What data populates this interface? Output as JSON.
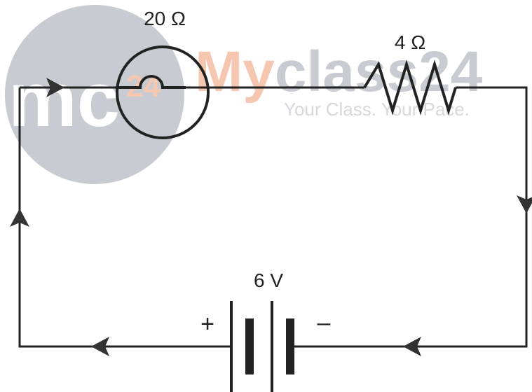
{
  "watermark": {
    "logo_text": "mc",
    "logo_badge": "24",
    "brand_my": "My",
    "brand_rest": "class24",
    "tagline": "Your Class. Your Pace.",
    "colors": {
      "circle": "#c9cbd2",
      "badge": "#f6c7b0",
      "brand_my": "#f6c7b0",
      "brand_rest": "#c9cbd2",
      "tagline": "#d6d8dd"
    }
  },
  "components": {
    "lamp": {
      "label": "20 Ω"
    },
    "resistor": {
      "label": "4 Ω"
    },
    "battery": {
      "label": "6 V",
      "positive": "+",
      "negative": "–"
    }
  },
  "colors": {
    "wire": "#222222",
    "arrow": "#333333"
  },
  "current_direction": "clockwise"
}
